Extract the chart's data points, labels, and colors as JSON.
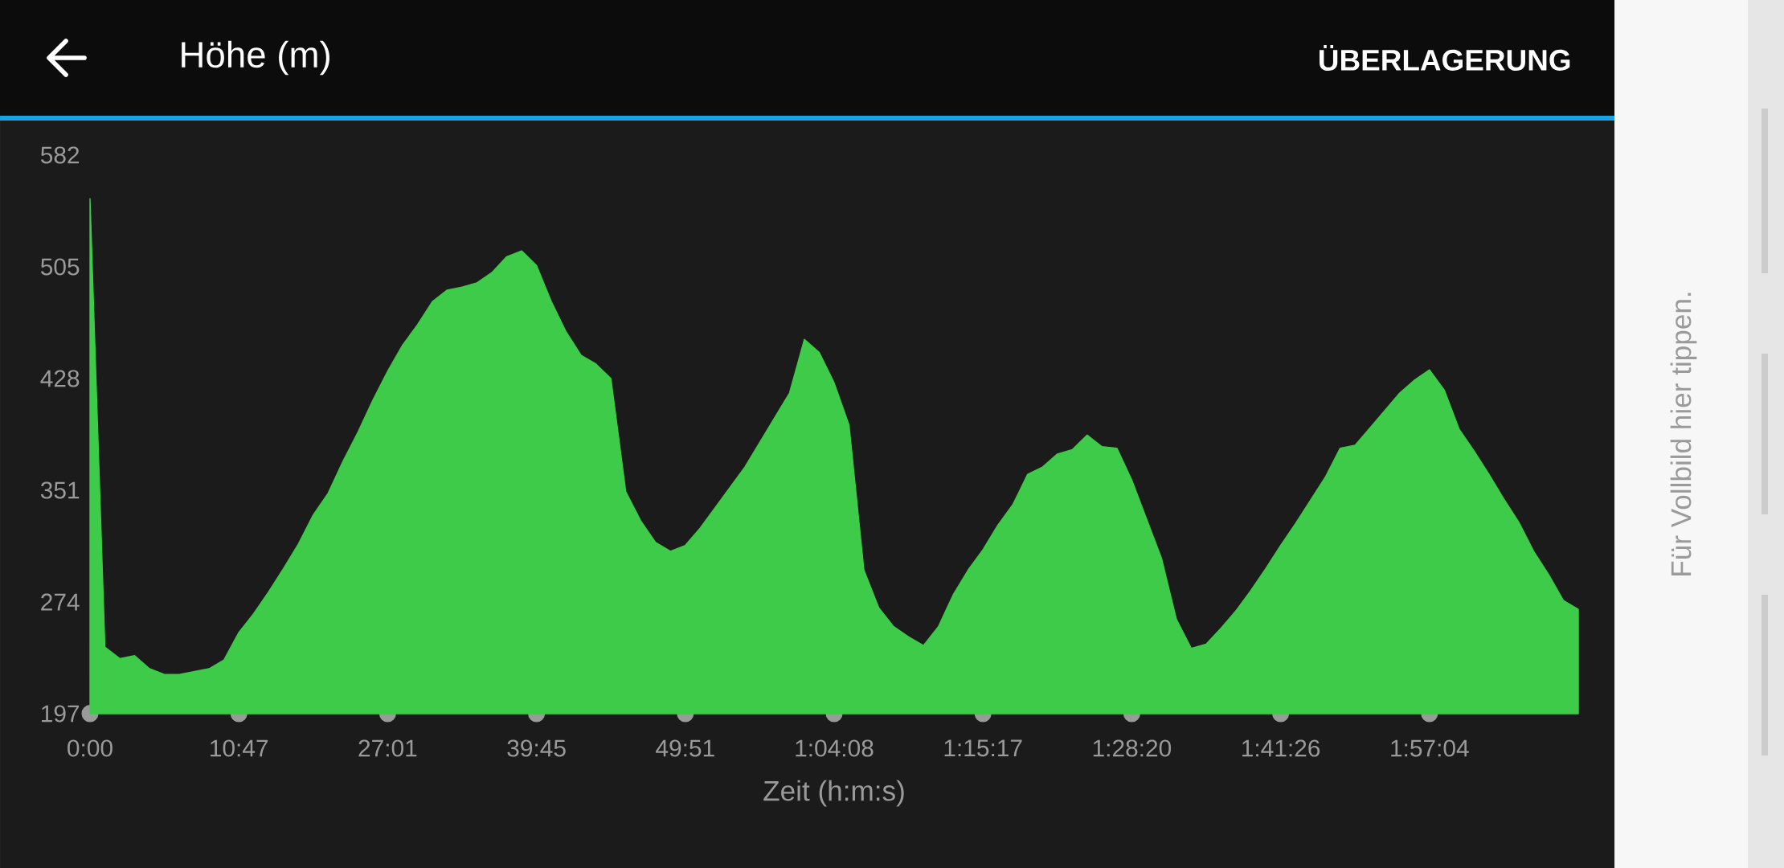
{
  "chart_data": {
    "type": "area",
    "title": "Höhe (m)",
    "xlabel": "Zeit (h:m:s)",
    "color": "#3ecb4a",
    "annotations": [
      "ÜBERLAGERUNG",
      "Für Vollbild hier tippen."
    ],
    "categories": [
      "0:00",
      null,
      null,
      null,
      null,
      null,
      null,
      null,
      null,
      null,
      "10:47",
      null,
      null,
      null,
      null,
      null,
      null,
      null,
      null,
      null,
      "27:01",
      null,
      null,
      null,
      null,
      null,
      null,
      null,
      null,
      null,
      "39:45",
      null,
      null,
      null,
      null,
      null,
      null,
      null,
      null,
      null,
      "49:51",
      null,
      null,
      null,
      null,
      null,
      null,
      null,
      null,
      null,
      "1:04:08",
      null,
      null,
      null,
      null,
      null,
      null,
      null,
      null,
      null,
      "1:15:17",
      null,
      null,
      null,
      null,
      null,
      null,
      null,
      null,
      null,
      "1:28:20",
      null,
      null,
      null,
      null,
      null,
      null,
      null,
      null,
      null,
      "1:41:26",
      null,
      null,
      null,
      null,
      null,
      null,
      null,
      null,
      null,
      "1:57:04",
      null,
      null,
      null,
      null,
      null,
      null,
      null,
      null,
      null,
      null
    ],
    "ylim": [
      197,
      582
    ],
    "yticks": [
      197,
      274,
      351,
      428,
      505,
      582
    ],
    "values": [
      552,
      243,
      235,
      237,
      228,
      224,
      224,
      226,
      228,
      234,
      253,
      266,
      281,
      297,
      314,
      334,
      349,
      371,
      391,
      413,
      433,
      451,
      465,
      481,
      489,
      491,
      494,
      501,
      512,
      516,
      506,
      481,
      460,
      444,
      438,
      428,
      350,
      330,
      315,
      309,
      313,
      325,
      339,
      353,
      367,
      384,
      401,
      418,
      455,
      446,
      425,
      396,
      296,
      270,
      257,
      250,
      244,
      257,
      279,
      296,
      310,
      327,
      341,
      362,
      367,
      376,
      379,
      389,
      381,
      380,
      358,
      331,
      304,
      262,
      242,
      245,
      256,
      268,
      282,
      297,
      313,
      328,
      344,
      360,
      380,
      382,
      394,
      406,
      418,
      427,
      434,
      420,
      393,
      378,
      362,
      345,
      329,
      309,
      293,
      275,
      269
    ]
  }
}
